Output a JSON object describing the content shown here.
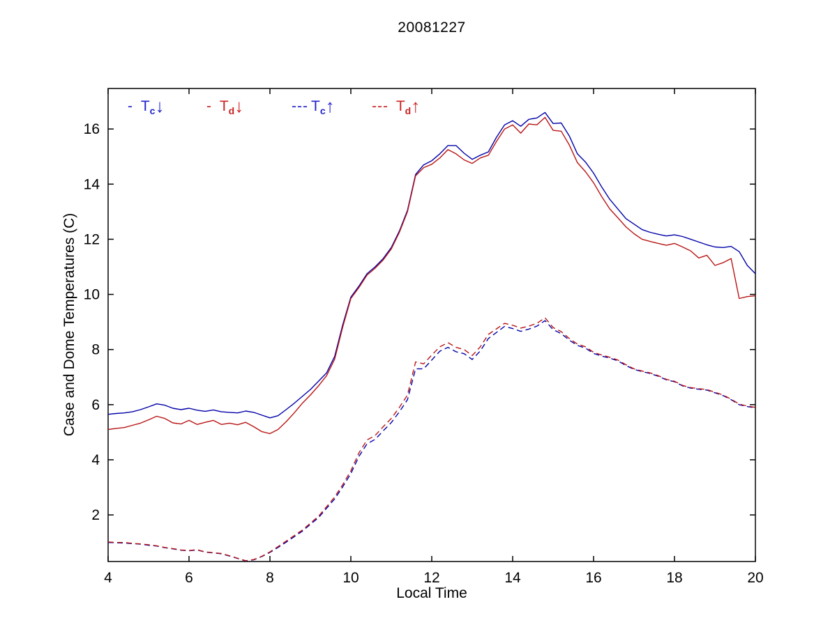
{
  "figure": {
    "title": "20081227",
    "background_color": "#ffffff"
  },
  "axes": {
    "xlabel": "Local Time",
    "ylabel": "Case and Dome Temperatures (C)",
    "xlim": [
      4,
      20
    ],
    "ylim": [
      0.31,
      17.47
    ],
    "xticks": [
      4,
      6,
      8,
      10,
      12,
      14,
      16,
      18,
      20
    ],
    "yticks": [
      2,
      4,
      6,
      8,
      10,
      12,
      14,
      16
    ],
    "grid": false,
    "box": true,
    "tick_direction": "in",
    "axis_color": "#000000"
  },
  "legend": {
    "position": "top-left-inside",
    "items": [
      {
        "prefix": "- ",
        "symbol": "T",
        "sub": "c",
        "arrow": "↓",
        "color": "#2222CC",
        "series": "Tc_down",
        "meaning": "case temperature, downward-looking"
      },
      {
        "prefix": "- ",
        "symbol": "T",
        "sub": "d",
        "arrow": "↓",
        "color": "#CC2222",
        "series": "Td_down",
        "meaning": "dome temperature, downward-looking"
      },
      {
        "prefix": "---",
        "symbol": "T",
        "sub": "c",
        "arrow": "↑",
        "color": "#2222CC",
        "series": "Tc_up",
        "meaning": "case temperature, upward-looking"
      },
      {
        "prefix": "--- ",
        "symbol": "T",
        "sub": "d",
        "arrow": "↑",
        "color": "#CC2222",
        "series": "Td_up",
        "meaning": "dome temperature, upward-looking"
      }
    ]
  },
  "chart_data": {
    "type": "line",
    "title": "20081227",
    "xlabel": "Local Time",
    "ylabel": "Case and Dome Temperatures (C)",
    "xlim": [
      4,
      20
    ],
    "ylim": [
      0.31,
      17.47
    ],
    "legend_position": "top-left-inside",
    "grid": false,
    "x_start": 4.0,
    "x_step": 0.2,
    "series": [
      {
        "name": "Tc_down",
        "label": "T_c (down)",
        "color": "#0000A8",
        "style": "solid",
        "values": [
          5.65,
          5.68,
          5.7,
          5.74,
          5.82,
          5.92,
          6.03,
          5.98,
          5.87,
          5.82,
          5.87,
          5.8,
          5.76,
          5.81,
          5.74,
          5.72,
          5.7,
          5.77,
          5.72,
          5.62,
          5.52,
          5.6,
          5.82,
          6.05,
          6.3,
          6.55,
          6.85,
          7.15,
          7.75,
          8.9,
          9.9,
          10.3,
          10.75,
          11.0,
          11.3,
          11.7,
          12.3,
          13.05,
          14.35,
          14.7,
          14.85,
          15.1,
          15.4,
          15.4,
          15.12,
          14.9,
          15.05,
          15.17,
          15.7,
          16.15,
          16.3,
          16.1,
          16.35,
          16.4,
          16.6,
          16.2,
          16.22,
          15.75,
          15.1,
          14.8,
          14.4,
          13.9,
          13.45,
          13.1,
          12.75,
          12.55,
          12.35,
          12.25,
          12.18,
          12.12,
          12.16,
          12.1,
          12.0,
          11.9,
          11.8,
          11.72,
          11.7,
          11.74,
          11.55,
          11.05,
          10.75
        ]
      },
      {
        "name": "Td_down",
        "label": "T_d (down)",
        "color": "#B81414",
        "style": "solid",
        "values": [
          5.1,
          5.14,
          5.17,
          5.25,
          5.33,
          5.45,
          5.58,
          5.5,
          5.34,
          5.3,
          5.43,
          5.28,
          5.36,
          5.43,
          5.28,
          5.33,
          5.27,
          5.36,
          5.2,
          5.02,
          4.95,
          5.1,
          5.38,
          5.7,
          6.05,
          6.35,
          6.68,
          7.05,
          7.65,
          8.82,
          9.85,
          10.25,
          10.7,
          10.95,
          11.25,
          11.65,
          12.25,
          13.0,
          14.3,
          14.6,
          14.72,
          14.95,
          15.25,
          15.1,
          14.88,
          14.75,
          14.95,
          15.05,
          15.55,
          16.0,
          16.15,
          15.85,
          16.18,
          16.15,
          16.42,
          15.95,
          15.92,
          15.42,
          14.78,
          14.45,
          14.05,
          13.55,
          13.1,
          12.78,
          12.45,
          12.2,
          12.0,
          11.92,
          11.85,
          11.78,
          11.85,
          11.72,
          11.58,
          11.32,
          11.42,
          11.05,
          11.15,
          11.3,
          9.85,
          9.92,
          9.95
        ]
      },
      {
        "name": "Tc_up",
        "label": "T_c (up)",
        "color": "#0000A8",
        "style": "dashed",
        "values": [
          1.0,
          0.99,
          0.98,
          0.96,
          0.94,
          0.9,
          0.87,
          0.81,
          0.77,
          0.72,
          0.7,
          0.73,
          0.65,
          0.62,
          0.59,
          0.51,
          0.42,
          0.33,
          0.37,
          0.49,
          0.64,
          0.82,
          1.01,
          1.21,
          1.41,
          1.66,
          1.9,
          2.24,
          2.58,
          3.02,
          3.5,
          4.12,
          4.58,
          4.74,
          5.05,
          5.35,
          5.74,
          6.18,
          7.3,
          7.3,
          7.62,
          7.94,
          8.08,
          7.92,
          7.85,
          7.64,
          7.95,
          8.4,
          8.62,
          8.84,
          8.76,
          8.66,
          8.74,
          8.85,
          9.05,
          8.72,
          8.58,
          8.34,
          8.15,
          8.05,
          7.86,
          7.76,
          7.69,
          7.59,
          7.42,
          7.28,
          7.2,
          7.13,
          7.03,
          6.9,
          6.83,
          6.68,
          6.6,
          6.56,
          6.53,
          6.43,
          6.33,
          6.18,
          6.0,
          5.93,
          5.88
        ]
      },
      {
        "name": "Td_up",
        "label": "T_d (up)",
        "color": "#B81414",
        "style": "dashed",
        "values": [
          1.02,
          1.0,
          1.0,
          0.97,
          0.95,
          0.92,
          0.88,
          0.82,
          0.78,
          0.73,
          0.71,
          0.74,
          0.66,
          0.63,
          0.6,
          0.52,
          0.43,
          0.34,
          0.38,
          0.5,
          0.66,
          0.85,
          1.05,
          1.25,
          1.45,
          1.7,
          1.95,
          2.3,
          2.65,
          3.1,
          3.6,
          4.25,
          4.72,
          4.88,
          5.2,
          5.5,
          5.9,
          6.35,
          7.55,
          7.48,
          7.8,
          8.1,
          8.25,
          8.08,
          8.0,
          7.78,
          8.1,
          8.55,
          8.75,
          8.95,
          8.88,
          8.78,
          8.85,
          8.95,
          9.15,
          8.8,
          8.65,
          8.4,
          8.2,
          8.1,
          7.9,
          7.8,
          7.72,
          7.62,
          7.45,
          7.3,
          7.22,
          7.15,
          7.05,
          6.92,
          6.85,
          6.7,
          6.62,
          6.58,
          6.55,
          6.45,
          6.35,
          6.2,
          6.02,
          5.95,
          5.9
        ]
      }
    ]
  }
}
